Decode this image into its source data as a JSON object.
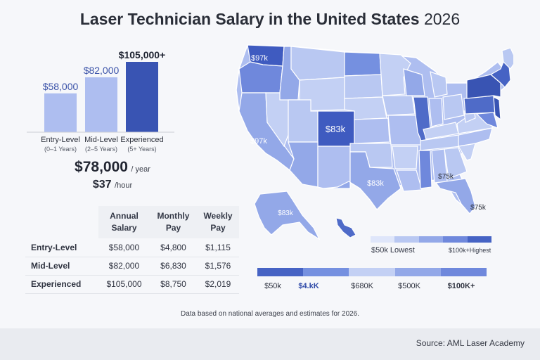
{
  "header": {
    "title": "Laser Technician Salary in the United States",
    "year": "2026"
  },
  "chart_data": [
    {
      "type": "bar",
      "categories": [
        "Entry-Level",
        "Mid-Level",
        "Experienced"
      ],
      "sublabels": [
        "(0–1 Years)",
        "(2–5 Years)",
        "(5+ Years)"
      ],
      "values": [
        58000,
        82000,
        105000
      ],
      "value_labels": [
        "$58,000",
        "$82,000",
        "$105,000+"
      ],
      "colors": [
        "#aebef0",
        "#aebef0",
        "#3954b3"
      ],
      "label_colors": [
        "#3a52a8",
        "#3a52a8",
        "#1d2230"
      ],
      "ylim": [
        0,
        105000
      ]
    },
    {
      "type": "map",
      "region": "United States",
      "state_labels": [
        {
          "state": "Washington",
          "label": "$97k"
        },
        {
          "state": "California",
          "label": "$97k"
        },
        {
          "state": "Colorado",
          "label": "$83k"
        },
        {
          "state": "Texas",
          "label": "$83k"
        },
        {
          "state": "Alaska",
          "label": "$83k"
        },
        {
          "state": "Georgia",
          "label": "$75k"
        },
        {
          "state": "Florida",
          "label": "$75k"
        }
      ],
      "legend": {
        "low": "$50k Lowest",
        "high": "$100k+Highest",
        "colors": [
          "#dfe6fa",
          "#b9c8f2",
          "#93a8e8",
          "#6f88dc",
          "#4663c4"
        ]
      }
    }
  ],
  "averages": {
    "year_value": "$78,000",
    "year_unit": "/ year",
    "hour_value": "$37",
    "hour_unit": "/hour"
  },
  "table": {
    "headers": [
      [
        "Annual",
        "Salary"
      ],
      [
        "Monthly",
        "Pay"
      ],
      [
        "Weekly",
        "Pay"
      ]
    ],
    "rows": [
      {
        "label": "Entry-Level",
        "annual": "$58,000",
        "monthly": "$4,800",
        "weekly": "$1,115"
      },
      {
        "label": "Mid-Level",
        "annual": "$82,000",
        "monthly": "$6,830",
        "weekly": "$1,576"
      },
      {
        "label": "Experienced",
        "annual": "$105,000",
        "monthly": "$8,750",
        "weekly": "$2,019"
      }
    ]
  },
  "scale": {
    "colors": [
      "#4663c4",
      "#7590e0",
      "#c3d0f4",
      "#93a8e8",
      "#6f88dc"
    ],
    "labels": [
      "$50k",
      "$4.kK",
      "$680K",
      "$500K",
      "$100K+"
    ]
  },
  "note": "Data based on national averages and estimates for 2026.",
  "footer": {
    "source": "Source: AML Laser Academy"
  }
}
